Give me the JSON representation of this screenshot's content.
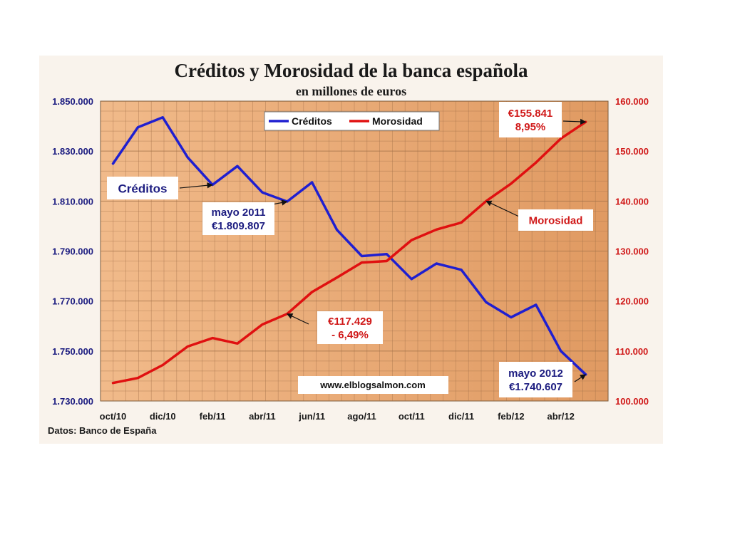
{
  "chart_data": {
    "type": "line",
    "title": "Créditos y Morosidad de la banca española",
    "subtitle": "en millones de euros",
    "source": "Datos: Banco de España",
    "watermark": "www.elblogsalmon.com",
    "x": [
      "oct/10",
      "nov/10",
      "dic/10",
      "ene/11",
      "feb/11",
      "mar/11",
      "abr/11",
      "may/11",
      "jun/11",
      "jul/11",
      "ago/11",
      "sep/11",
      "oct/11",
      "nov/11",
      "dic/11",
      "ene/12",
      "feb/12",
      "mar/12",
      "abr/12",
      "may/12"
    ],
    "x_tick_labels": [
      "oct/10",
      "dic/10",
      "feb/11",
      "abr/11",
      "jun/11",
      "ago/11",
      "oct/11",
      "dic/11",
      "feb/12",
      "abr/12"
    ],
    "left_axis": {
      "ylim": [
        1730000,
        1850000
      ],
      "ticks": [
        1730000,
        1750000,
        1770000,
        1790000,
        1810000,
        1830000,
        1850000
      ],
      "tick_labels": [
        "1.730.000",
        "1.750.000",
        "1.770.000",
        "1.790.000",
        "1.810.000",
        "1.830.000",
        "1.850.000"
      ],
      "color": "#1c1c80"
    },
    "right_axis": {
      "ylim": [
        100000,
        160000
      ],
      "ticks": [
        100000,
        110000,
        120000,
        130000,
        140000,
        150000,
        160000
      ],
      "tick_labels": [
        "100.000",
        "110.000",
        "120.000",
        "130.000",
        "140.000",
        "150.000",
        "160.000"
      ],
      "color": "#d01818"
    },
    "series": [
      {
        "name": "Créditos",
        "axis": "left",
        "color": "#1f1fd0",
        "values": [
          1825000,
          1839500,
          1843500,
          1827500,
          1816500,
          1824000,
          1813500,
          1809807,
          1817500,
          1798500,
          1788000,
          1788800,
          1778800,
          1785000,
          1782500,
          1769500,
          1763500,
          1768500,
          1750000,
          1740607
        ]
      },
      {
        "name": "Morosidad",
        "axis": "right",
        "color": "#e01010",
        "values": [
          103600,
          104600,
          107200,
          110900,
          112600,
          111500,
          115300,
          117429,
          121800,
          124700,
          127700,
          128000,
          132200,
          134300,
          135700,
          140000,
          143500,
          147700,
          152500,
          155841
        ]
      }
    ],
    "legend": {
      "placement": "top-center",
      "entries": [
        "Créditos",
        "Morosidad"
      ]
    },
    "grid": true,
    "annotations": [
      {
        "id": "creditos-label",
        "lines": [
          "Créditos"
        ],
        "color": "#1c1c80",
        "series": 0,
        "point": 4
      },
      {
        "id": "credit-may11",
        "lines": [
          "mayo 2011",
          "€1.809.807"
        ],
        "color": "#1c1c80",
        "series": 0,
        "point": 7
      },
      {
        "id": "moro-may11",
        "lines": [
          "€117.429",
          "- 6,49%"
        ],
        "color": "#d01818",
        "series": 1,
        "point": 7
      },
      {
        "id": "moro-label",
        "lines": [
          "Morosidad"
        ],
        "color": "#d01818",
        "series": 1,
        "point": 15
      },
      {
        "id": "moro-end",
        "lines": [
          "€155.841",
          "8,95%"
        ],
        "color": "#d01818",
        "series": 1,
        "point": 19
      },
      {
        "id": "credit-end",
        "lines": [
          "mayo 2012",
          "€1.740.607"
        ],
        "color": "#1c1c80",
        "series": 0,
        "point": 19
      }
    ]
  }
}
